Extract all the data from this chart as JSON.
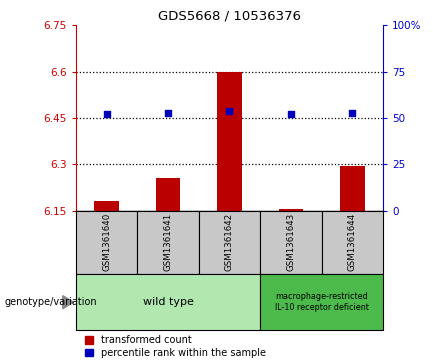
{
  "title": "GDS5668 / 10536376",
  "samples": [
    "GSM1361640",
    "GSM1361641",
    "GSM1361642",
    "GSM1361643",
    "GSM1361644"
  ],
  "bar_values": [
    6.18,
    6.255,
    6.6,
    6.155,
    6.295
  ],
  "bar_bottom": 6.15,
  "dot_values": [
    6.463,
    6.465,
    6.472,
    6.462,
    6.466
  ],
  "ylim_left": [
    6.15,
    6.75
  ],
  "ylim_right": [
    0,
    100
  ],
  "yticks_left": [
    6.15,
    6.3,
    6.45,
    6.6,
    6.75
  ],
  "yticks_right": [
    0,
    25,
    50,
    75,
    100
  ],
  "ytick_labels_left": [
    "6.15",
    "6.3",
    "6.45",
    "6.6",
    "6.75"
  ],
  "ytick_labels_right": [
    "0",
    "25",
    "50",
    "75",
    "100%"
  ],
  "hlines": [
    6.3,
    6.45,
    6.6
  ],
  "bar_color": "#bb0000",
  "dot_color": "#0000bb",
  "genotype_label": "genotype/variation",
  "wild_type_label": "wild type",
  "macrophage_label": "macrophage-restricted\nIL-10 receptor deficient",
  "legend_bar_label": "transformed count",
  "legend_dot_label": "percentile rank within the sample",
  "panel_bg": "#c8c8c8",
  "wild_type_bg": "#b0e8b0",
  "macrophage_bg": "#4cbb4c",
  "title_color": "#000000",
  "left_axis_color": "#cc0000",
  "right_axis_color": "#0000cc"
}
